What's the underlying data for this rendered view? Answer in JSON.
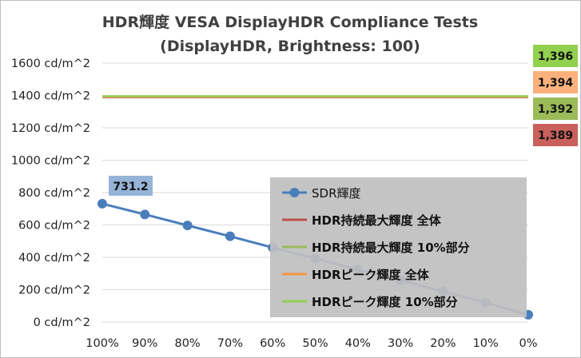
{
  "chart_data": {
    "type": "line",
    "title": "HDR輝度 VESA DisplayHDR Compliance Tests",
    "subtitle": "(DisplayHDR, Brightness: 100)",
    "xlabel": "",
    "ylabel": "",
    "categories": [
      "100%",
      "90%",
      "80%",
      "70%",
      "60%",
      "50%",
      "40%",
      "30%",
      "20%",
      "10%",
      "0%"
    ],
    "ylim": [
      0,
      1600
    ],
    "ytick_values": [
      0,
      200,
      400,
      600,
      800,
      1000,
      1200,
      1400,
      1600
    ],
    "ytick_labels": [
      "0 cd/m^2",
      "200 cd/m^2",
      "400 cd/m^2",
      "600 cd/m^2",
      "800 cd/m^2",
      "1000 cd/m^2",
      "1200 cd/m^2",
      "1400 cd/m^2",
      "1600 cd/m^2"
    ],
    "grid": true,
    "legend_position": "bottom-right",
    "series": [
      {
        "name": "SDR輝度",
        "color": "#4a7ebb",
        "values": [
          731.2,
          665,
          597,
          530,
          460,
          392,
          325,
          258,
          190,
          120,
          45
        ],
        "callout": "731.2",
        "marker": "circle"
      },
      {
        "name": "HDR持続最大輝度 全体",
        "color": "#c0504d",
        "value": 1389,
        "label": "1,389"
      },
      {
        "name": "HDR持続最大輝度 10%部分",
        "color": "#9bbb59",
        "value": 1392,
        "label": "1,392"
      },
      {
        "name": "HDRピーク輝度 全体",
        "color": "#f79646",
        "value": 1394,
        "label": "1,394"
      },
      {
        "name": "HDRピーク輝度 10%部分",
        "color": "#92d050",
        "value": 1396,
        "label": "1,396"
      }
    ]
  }
}
